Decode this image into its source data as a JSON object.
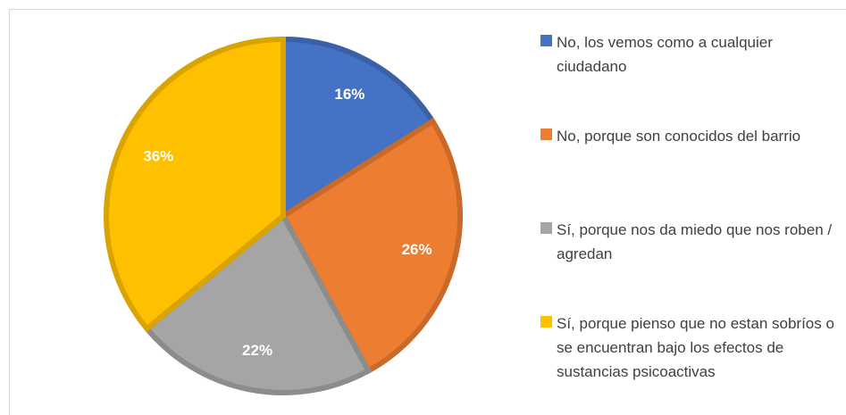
{
  "chart_data": {
    "type": "pie",
    "categories": [
      "No, los vemos como a cualquier ciudadano",
      "No, porque son conocidos del barrio",
      "Sí, porque nos da miedo que nos roben / agredan",
      "Sí, porque pienso que no estan sobríos o se encuentran bajo los efectos de sustancias psicoactivas"
    ],
    "values": [
      16,
      26,
      22,
      36
    ],
    "value_labels": [
      "16%",
      "26%",
      "22%",
      "36%"
    ],
    "colors": [
      "#4472c4",
      "#ed7d31",
      "#a5a5a5",
      "#ffc000"
    ],
    "legend": "right"
  }
}
